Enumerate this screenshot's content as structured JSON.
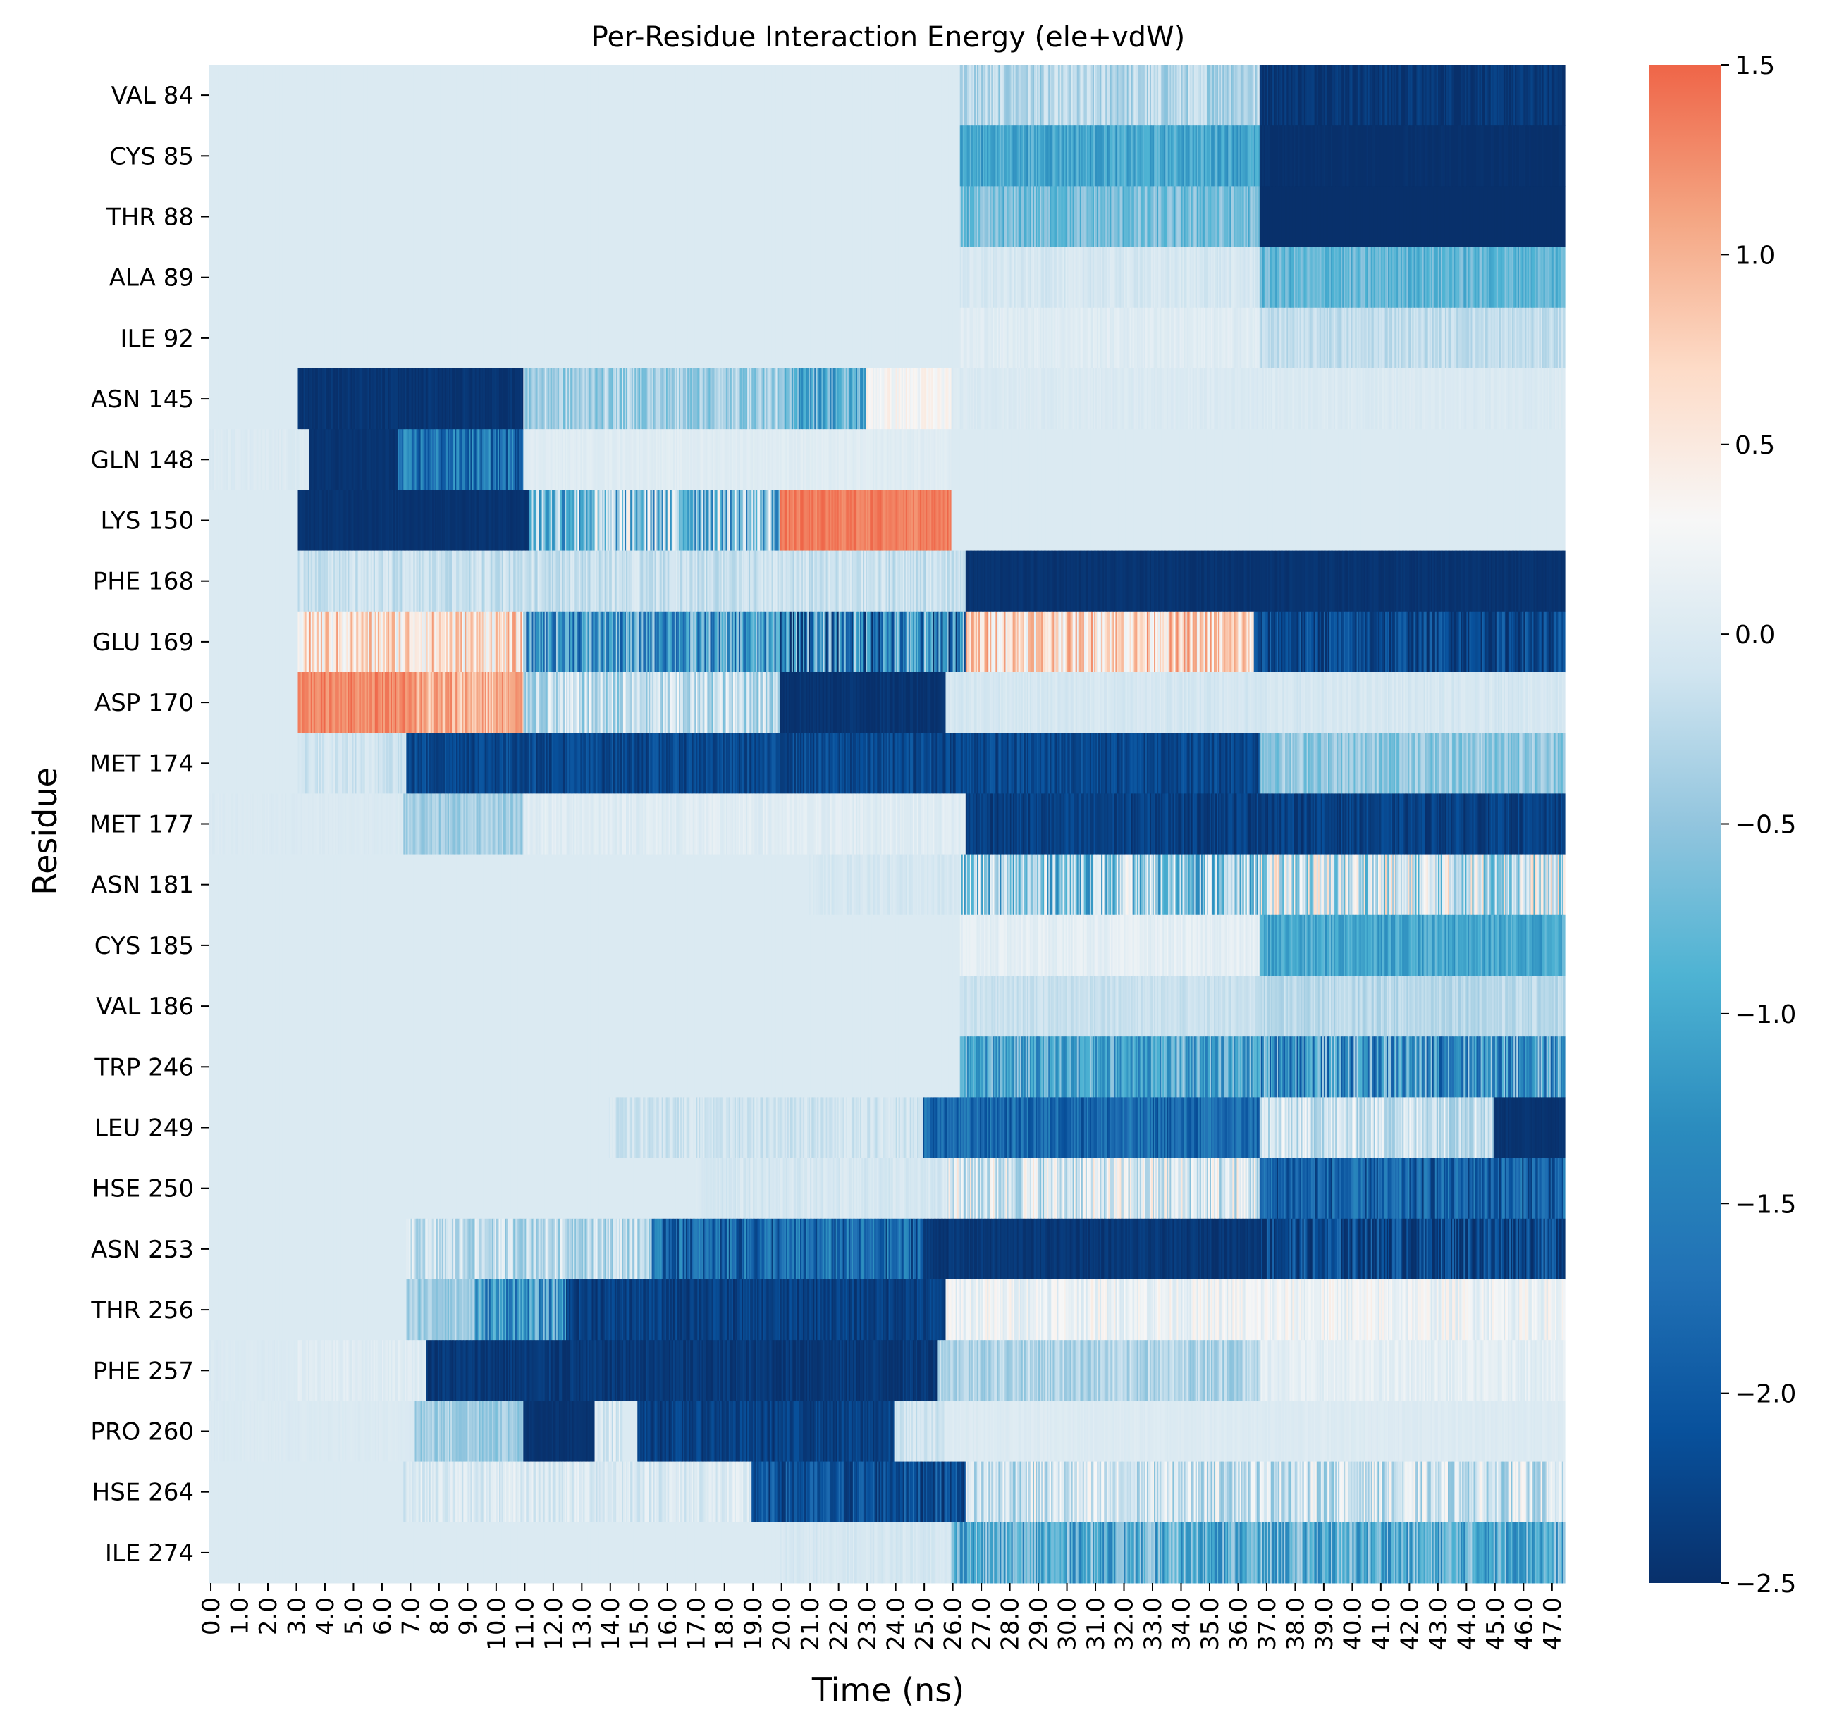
{
  "chart_data": {
    "type": "heatmap",
    "title": "Per-Residue Interaction Energy (ele+vdW)",
    "xlabel": "Time (ns)",
    "ylabel": "Residue",
    "x_ticks": [
      "0.0",
      "1.0",
      "2.0",
      "3.0",
      "4.0",
      "5.0",
      "6.0",
      "7.0",
      "8.0",
      "9.0",
      "10.0",
      "11.0",
      "12.0",
      "13.0",
      "14.0",
      "15.0",
      "16.0",
      "17.0",
      "18.0",
      "19.0",
      "20.0",
      "21.0",
      "22.0",
      "23.0",
      "24.0",
      "25.0",
      "26.0",
      "27.0",
      "28.0",
      "29.0",
      "30.0",
      "31.0",
      "32.0",
      "33.0",
      "34.0",
      "35.0",
      "36.0",
      "37.0",
      "38.0",
      "39.0",
      "40.0",
      "41.0",
      "42.0",
      "43.0",
      "44.0",
      "45.0",
      "46.0",
      "47.0"
    ],
    "xlim": [
      0,
      47.5
    ],
    "residues": [
      "VAL 84",
      "CYS 85",
      "THR 88",
      "ALA 89",
      "ILE 92",
      "ASN 145",
      "GLN 148",
      "LYS 150",
      "PHE 168",
      "GLU 169",
      "ASP 170",
      "MET 174",
      "MET 177",
      "ASN 181",
      "CYS 185",
      "VAL 186",
      "TRP 246",
      "LEU 249",
      "HSE 250",
      "ASN 253",
      "THR 256",
      "PHE 257",
      "PRO 260",
      "HSE 264",
      "ILE 274"
    ],
    "colorbar": {
      "min": -2.5,
      "max": 1.5,
      "ticks": [
        "1.5",
        "1.0",
        "0.5",
        "0.0",
        "−0.5",
        "−1.0",
        "−1.5",
        "−2.0",
        "−2.5"
      ],
      "tick_values": [
        1.5,
        1.0,
        0.5,
        0.0,
        -0.5,
        -1.0,
        -1.5,
        -2.0,
        -2.5
      ],
      "colormap": "RdBu_r",
      "colors": [
        "#08306b",
        "#08519c",
        "#2171b5",
        "#2b8cbe",
        "#4eb3d3",
        "#92c5de",
        "#d1e5f0",
        "#f7f7f7",
        "#fddbc7",
        "#f4a582",
        "#ef6548"
      ]
    },
    "segments": [
      {
        "residue": "VAL 84",
        "blocks": [
          [
            0,
            26.3,
            0.0,
            0
          ],
          [
            26.3,
            36.8,
            -0.3,
            0.3
          ],
          [
            36.8,
            47.5,
            -2.4,
            0.15
          ]
        ]
      },
      {
        "residue": "CYS 85",
        "blocks": [
          [
            0,
            26.3,
            0.0,
            0
          ],
          [
            26.3,
            36.8,
            -1.0,
            0.3
          ],
          [
            36.8,
            47.5,
            -2.5,
            0.05
          ]
        ]
      },
      {
        "residue": "THR 88",
        "blocks": [
          [
            0,
            26.3,
            0.0,
            0
          ],
          [
            26.3,
            36.8,
            -0.7,
            0.35
          ],
          [
            36.8,
            47.5,
            -2.5,
            0.0
          ]
        ]
      },
      {
        "residue": "ALA 89",
        "blocks": [
          [
            0,
            26.3,
            0.0,
            0
          ],
          [
            26.3,
            36.8,
            -0.05,
            0.1
          ],
          [
            36.8,
            47.5,
            -0.8,
            0.3
          ]
        ]
      },
      {
        "residue": "ILE 92",
        "blocks": [
          [
            0,
            26.3,
            0.0,
            0
          ],
          [
            26.3,
            36.8,
            0.05,
            0.08
          ],
          [
            36.8,
            47.5,
            -0.2,
            0.15
          ]
        ]
      },
      {
        "residue": "ASN 145",
        "blocks": [
          [
            0,
            3.1,
            0.0,
            0
          ],
          [
            3.1,
            6.9,
            -2.45,
            0.1
          ],
          [
            6.9,
            11.0,
            -2.45,
            0.1
          ],
          [
            11.0,
            20.0,
            -0.4,
            0.35
          ],
          [
            20.0,
            23.0,
            -0.9,
            0.6
          ],
          [
            23.0,
            26.0,
            0.3,
            0.2
          ],
          [
            26.0,
            47.5,
            0.0,
            0.05
          ]
        ]
      },
      {
        "residue": "GLN 148",
        "blocks": [
          [
            0,
            3.5,
            0.0,
            0.05
          ],
          [
            3.5,
            6.6,
            -2.45,
            0.05
          ],
          [
            6.6,
            11.0,
            -1.7,
            0.6
          ],
          [
            11.0,
            26.0,
            0.05,
            0.05
          ],
          [
            26.0,
            47.5,
            0.0,
            0
          ]
        ]
      },
      {
        "residue": "LYS 150",
        "blocks": [
          [
            0,
            3.1,
            0.0,
            0
          ],
          [
            3.1,
            11.2,
            -2.45,
            0.05
          ],
          [
            11.2,
            20.0,
            -0.6,
            1.1
          ],
          [
            20.0,
            26.0,
            1.35,
            0.15
          ],
          [
            26.0,
            47.5,
            0.0,
            0
          ]
        ]
      },
      {
        "residue": "PHE 168",
        "blocks": [
          [
            0,
            3.1,
            0.0,
            0
          ],
          [
            3.1,
            26.5,
            -0.15,
            0.2
          ],
          [
            26.5,
            47.5,
            -2.45,
            0.05
          ]
        ]
      },
      {
        "residue": "GLU 169",
        "blocks": [
          [
            0,
            3.1,
            0.0,
            0
          ],
          [
            3.1,
            11.0,
            0.6,
            0.6
          ],
          [
            11.0,
            20.0,
            -1.2,
            0.9
          ],
          [
            20.0,
            26.5,
            -1.4,
            1.2
          ],
          [
            26.5,
            36.6,
            0.7,
            0.6
          ],
          [
            36.6,
            47.5,
            -2.2,
            0.4
          ]
        ]
      },
      {
        "residue": "ASP 170",
        "blocks": [
          [
            0,
            3.1,
            0.0,
            0
          ],
          [
            3.1,
            7.2,
            1.3,
            0.2
          ],
          [
            7.2,
            11.0,
            1.0,
            0.4
          ],
          [
            11.0,
            20.0,
            -0.2,
            0.5
          ],
          [
            20.0,
            25.8,
            -2.45,
            0.1
          ],
          [
            25.8,
            47.5,
            -0.05,
            0.08
          ]
        ]
      },
      {
        "residue": "MET 174",
        "blocks": [
          [
            0,
            3.1,
            0.0,
            0
          ],
          [
            3.1,
            6.9,
            -0.1,
            0.15
          ],
          [
            6.9,
            25.8,
            -2.2,
            0.25
          ],
          [
            25.8,
            36.8,
            -2.2,
            0.25
          ],
          [
            36.8,
            47.5,
            -0.5,
            0.3
          ]
        ]
      },
      {
        "residue": "MET 177",
        "blocks": [
          [
            0,
            6.8,
            0.0,
            0.03
          ],
          [
            6.8,
            11.0,
            -0.4,
            0.2
          ],
          [
            11.0,
            26.5,
            0.05,
            0.1
          ],
          [
            26.5,
            47.5,
            -2.3,
            0.2
          ]
        ]
      },
      {
        "residue": "ASN 181",
        "blocks": [
          [
            0,
            21.0,
            0.0,
            0
          ],
          [
            21.0,
            26.3,
            -0.05,
            0.08
          ],
          [
            26.3,
            36.8,
            -0.5,
            0.9
          ],
          [
            36.8,
            47.5,
            -0.1,
            0.9
          ]
        ]
      },
      {
        "residue": "CYS 185",
        "blocks": [
          [
            0,
            26.3,
            0.0,
            0
          ],
          [
            26.3,
            36.8,
            0.1,
            0.1
          ],
          [
            36.8,
            47.5,
            -1.0,
            0.3
          ]
        ]
      },
      {
        "residue": "VAL 186",
        "blocks": [
          [
            0,
            26.3,
            0.0,
            0
          ],
          [
            26.3,
            36.8,
            -0.15,
            0.1
          ],
          [
            36.8,
            47.5,
            -0.25,
            0.15
          ]
        ]
      },
      {
        "residue": "TRP 246",
        "blocks": [
          [
            0,
            26.3,
            0.0,
            0
          ],
          [
            26.3,
            36.8,
            -1.0,
            0.6
          ],
          [
            36.8,
            47.5,
            -1.2,
            0.9
          ]
        ]
      },
      {
        "residue": "LEU 249",
        "blocks": [
          [
            0,
            14.0,
            0.0,
            0
          ],
          [
            14.0,
            25.0,
            -0.1,
            0.15
          ],
          [
            25.0,
            36.8,
            -1.8,
            0.4
          ],
          [
            36.8,
            45.0,
            -0.1,
            0.4
          ],
          [
            45.0,
            47.5,
            -2.45,
            0.05
          ]
        ]
      },
      {
        "residue": "HSE 250",
        "blocks": [
          [
            0,
            17.0,
            0.0,
            0
          ],
          [
            17.0,
            25.8,
            -0.05,
            0.1
          ],
          [
            25.8,
            36.8,
            0.0,
            0.6
          ],
          [
            36.8,
            47.5,
            -1.9,
            0.5
          ]
        ]
      },
      {
        "residue": "ASN 253",
        "blocks": [
          [
            0,
            6.9,
            0.0,
            0
          ],
          [
            6.9,
            15.5,
            -0.2,
            0.4
          ],
          [
            15.5,
            25.0,
            -1.8,
            0.6
          ],
          [
            25.0,
            36.8,
            -2.4,
            0.1
          ],
          [
            36.8,
            47.5,
            -2.2,
            0.5
          ]
        ]
      },
      {
        "residue": "THR 256",
        "blocks": [
          [
            0,
            6.9,
            0.0,
            0
          ],
          [
            6.9,
            9.3,
            -0.4,
            0.25
          ],
          [
            9.3,
            12.5,
            -1.2,
            0.7
          ],
          [
            12.5,
            25.8,
            -2.3,
            0.2
          ],
          [
            25.8,
            47.5,
            0.2,
            0.25
          ]
        ]
      },
      {
        "residue": "PHE 257",
        "blocks": [
          [
            0,
            3.1,
            0.0,
            0.03
          ],
          [
            3.1,
            7.6,
            0.05,
            0.08
          ],
          [
            7.6,
            25.5,
            -2.4,
            0.15
          ],
          [
            25.5,
            36.8,
            -0.3,
            0.25
          ],
          [
            36.8,
            47.5,
            0.1,
            0.12
          ]
        ]
      },
      {
        "residue": "PRO 260",
        "blocks": [
          [
            0,
            7.2,
            0.0,
            0.03
          ],
          [
            7.2,
            11.0,
            -0.4,
            0.25
          ],
          [
            11.0,
            13.5,
            -2.45,
            0.05
          ],
          [
            13.5,
            14.5,
            -0.1,
            0.3
          ],
          [
            14.5,
            15.0,
            0.0,
            0
          ],
          [
            15.0,
            24.0,
            -2.3,
            0.2
          ],
          [
            24.0,
            25.8,
            -0.1,
            0.15
          ],
          [
            25.8,
            47.5,
            0.02,
            0.04
          ]
        ]
      },
      {
        "residue": "HSE 264",
        "blocks": [
          [
            0,
            6.8,
            0.0,
            0
          ],
          [
            6.8,
            19.0,
            0.0,
            0.2
          ],
          [
            19.0,
            26.5,
            -2.1,
            0.4
          ],
          [
            26.5,
            47.5,
            -0.1,
            0.5
          ]
        ]
      },
      {
        "residue": "ILE 274",
        "blocks": [
          [
            0,
            20.0,
            0.0,
            0
          ],
          [
            20.0,
            26.0,
            -0.05,
            0.08
          ],
          [
            26.0,
            47.5,
            -0.9,
            0.6
          ]
        ]
      }
    ]
  }
}
